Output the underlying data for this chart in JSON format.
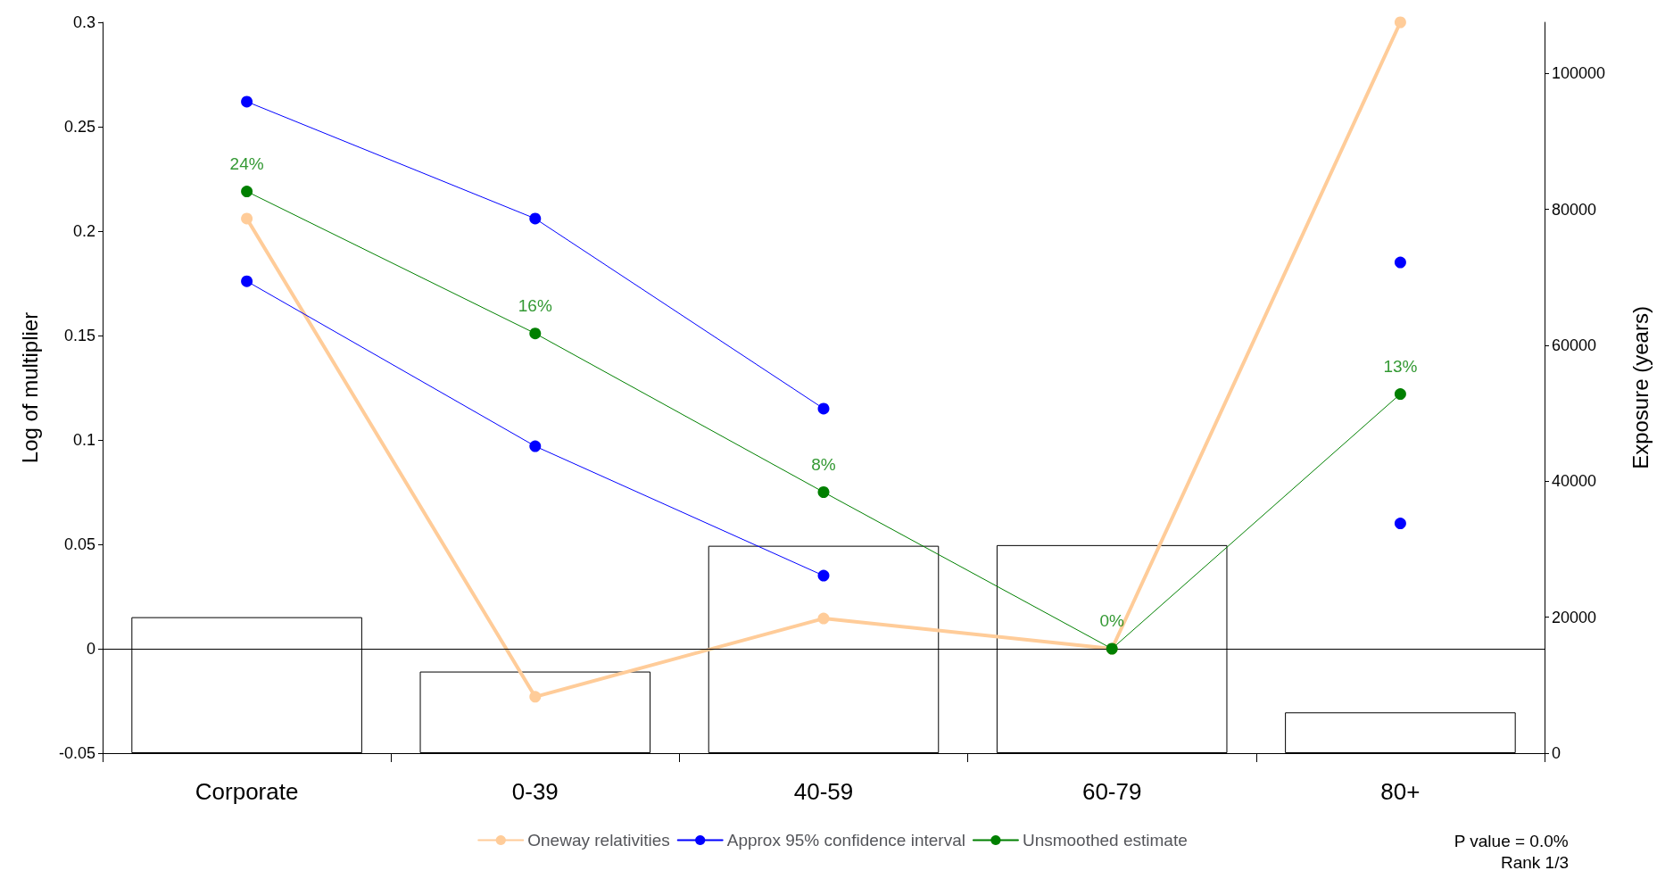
{
  "chart_data": {
    "type": "line",
    "ylabel": "Log of multiplier",
    "y2label": "Exposure (years)",
    "categories": [
      "Corporate",
      "0-39",
      "40-59",
      "60-79",
      "80+"
    ],
    "series": [
      {
        "type": "bar",
        "axis": "y2",
        "color": "#ffffff",
        "values": [
          20000,
          12000,
          30500,
          30600,
          6000
        ]
      },
      {
        "name": "Oneway relativities",
        "color": "#ffcc99",
        "values": [
          0.206,
          -0.023,
          0.0145,
          0,
          0.3
        ]
      },
      {
        "name": "Approx 95% confidence interval",
        "color": "#0000ff",
        "values": [
          0.262,
          0.206,
          0.115,
          null,
          0.185
        ]
      },
      {
        "color": "#0000ff",
        "values": [
          0.176,
          0.097,
          0.035,
          null,
          0.06
        ]
      },
      {
        "name": "Unsmoothed estimate",
        "color": "#008000",
        "values": [
          0.219,
          0.151,
          0.075,
          0,
          0.122
        ]
      }
    ],
    "ylim": [
      -0.05,
      0.3
    ],
    "yticks": [
      -0.05,
      0,
      0.05,
      0.1,
      0.15,
      0.2,
      0.25,
      0.3
    ],
    "y2lim": [
      0,
      107500
    ],
    "y2ticks": [
      0,
      20000,
      40000,
      60000,
      80000,
      100000
    ],
    "ref_lines": [
      {
        "axis": "y",
        "value": 0,
        "color": "#000000"
      }
    ],
    "annotations": [
      "P value = 0.0%",
      "Rank 1/3",
      {
        "text": "24%",
        "x": "Corporate",
        "y": 0.219
      },
      {
        "text": "16%",
        "x": "0-39",
        "y": 0.151
      },
      {
        "text": "8%",
        "x": "40-59",
        "y": 0.075
      },
      {
        "text": "0%",
        "x": "60-79",
        "y": 0
      },
      {
        "text": "13%",
        "x": "80+",
        "y": 0.122
      }
    ],
    "grid": false,
    "legend": "bottom",
    "marker": "circle",
    "line_style": "solid"
  }
}
